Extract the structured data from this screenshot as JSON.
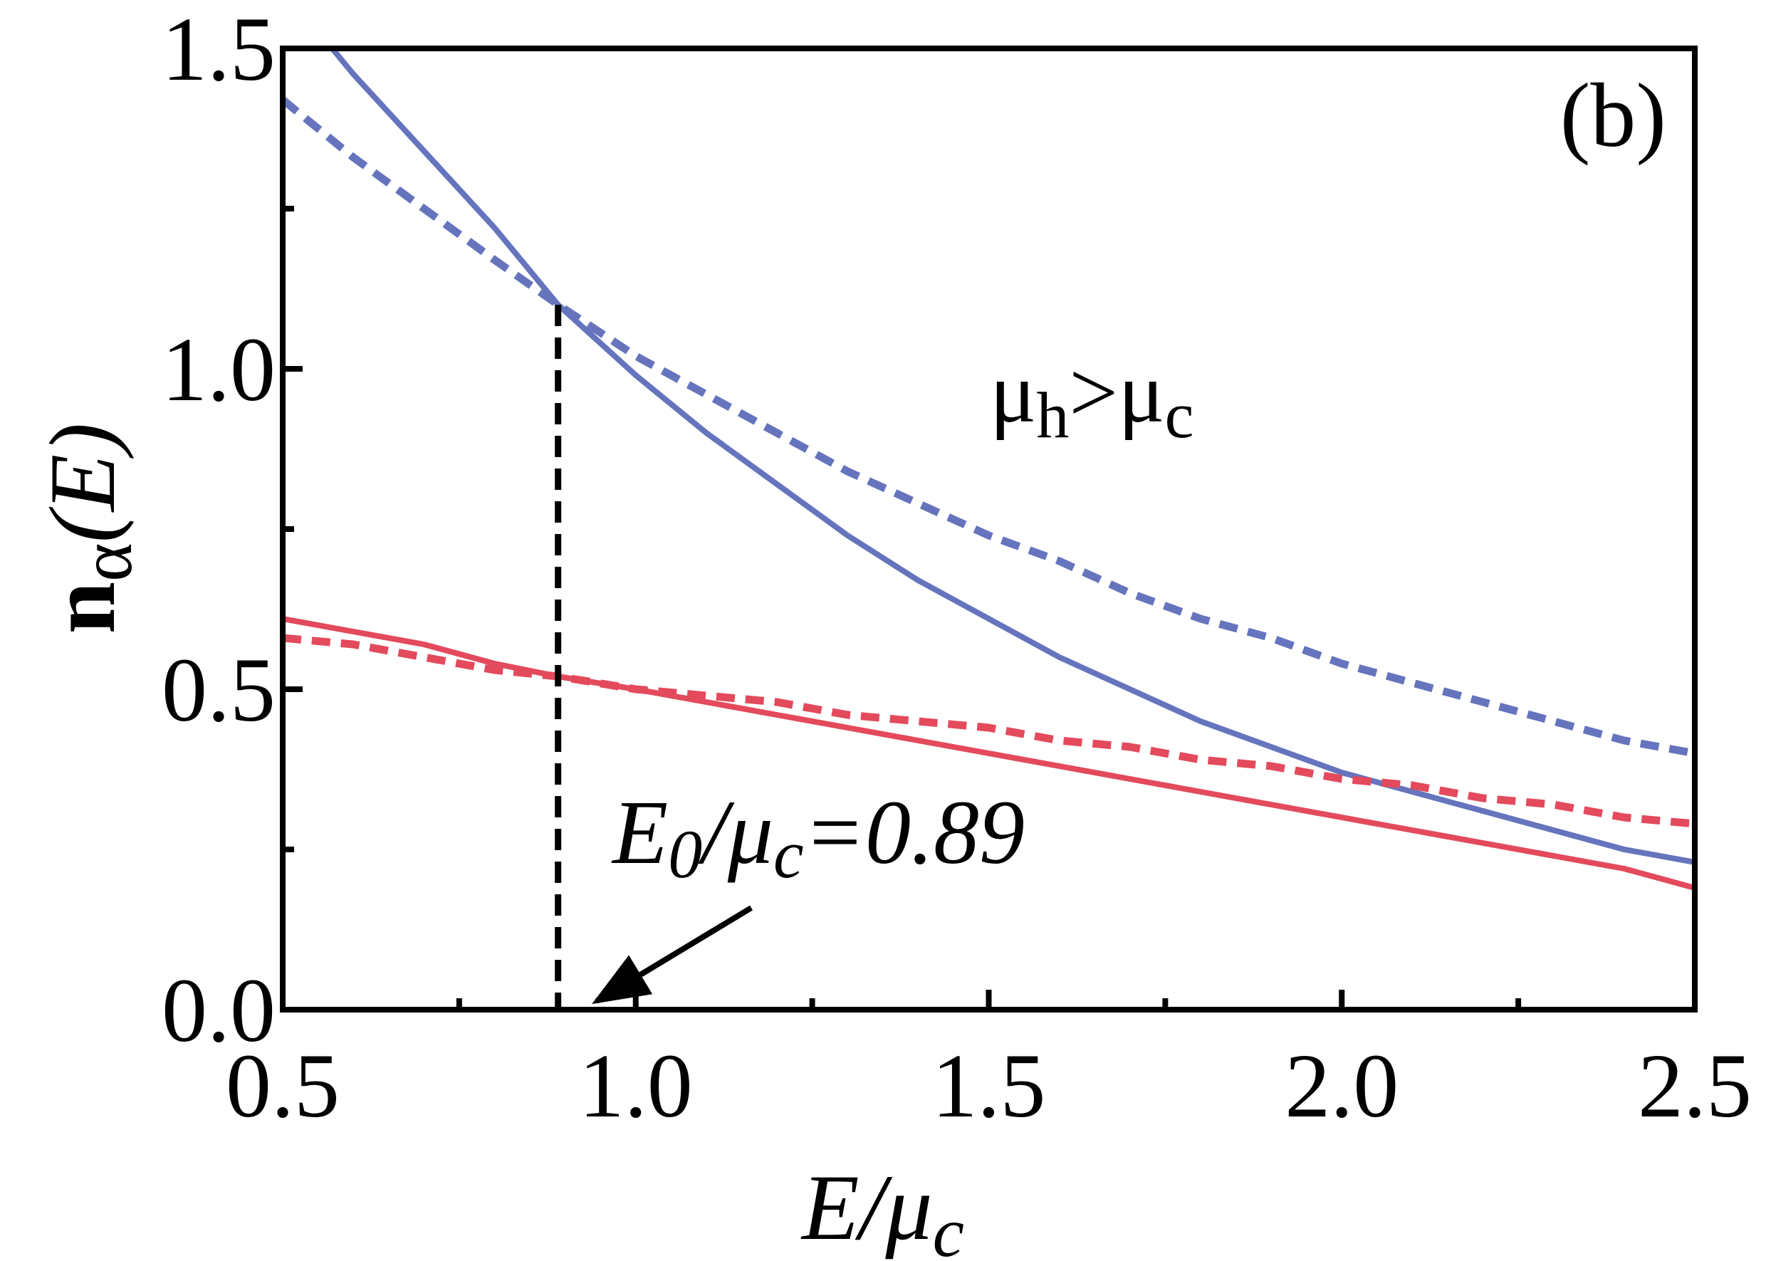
{
  "chart_data": {
    "type": "line",
    "panel_label": "(b)",
    "xlabel": {
      "main": "E/μ",
      "sub": "c"
    },
    "ylabel": {
      "main": "n",
      "sub": "α",
      "tail": "(E)"
    },
    "xlim": [
      0.5,
      2.5
    ],
    "ylim": [
      0.0,
      1.5
    ],
    "x_ticks": [
      0.5,
      1.0,
      1.5,
      2.0,
      2.5
    ],
    "x_tick_labels": [
      "0.5",
      "1.0",
      "1.5",
      "2.0",
      "2.5"
    ],
    "x_minor_ticks": [
      0.75,
      1.25,
      1.75,
      2.25
    ],
    "y_ticks": [
      0.0,
      0.5,
      1.0,
      1.5
    ],
    "y_tick_labels": [
      "0.0",
      "0.5",
      "1.0",
      "1.5"
    ],
    "y_minor_ticks": [
      0.25,
      0.75,
      1.25
    ],
    "grid": false,
    "colors": {
      "blue": "#6574bd",
      "red": "#e34a5c",
      "marker": "#000000"
    },
    "series": [
      {
        "style": "solid",
        "color": "blue",
        "x": [
          0.57,
          0.6,
          0.7,
          0.8,
          0.89,
          1.0,
          1.1,
          1.2,
          1.3,
          1.4,
          1.5,
          1.6,
          1.7,
          1.8,
          1.9,
          2.0,
          2.1,
          2.2,
          2.3,
          2.4,
          2.5
        ],
        "y": [
          1.5,
          1.46,
          1.34,
          1.22,
          1.1,
          0.99,
          0.9,
          0.82,
          0.74,
          0.67,
          0.61,
          0.55,
          0.5,
          0.45,
          0.41,
          0.37,
          0.34,
          0.31,
          0.28,
          0.25,
          0.23
        ]
      },
      {
        "style": "dashed",
        "color": "blue",
        "x": [
          0.5,
          0.6,
          0.7,
          0.8,
          0.89,
          1.0,
          1.1,
          1.2,
          1.3,
          1.4,
          1.5,
          1.6,
          1.7,
          1.8,
          1.9,
          2.0,
          2.1,
          2.2,
          2.3,
          2.4,
          2.5
        ],
        "y": [
          1.42,
          1.33,
          1.25,
          1.17,
          1.1,
          1.02,
          0.96,
          0.9,
          0.84,
          0.79,
          0.74,
          0.7,
          0.65,
          0.61,
          0.58,
          0.54,
          0.51,
          0.48,
          0.45,
          0.42,
          0.4
        ]
      },
      {
        "style": "solid",
        "color": "red",
        "x": [
          0.5,
          0.6,
          0.7,
          0.8,
          0.89,
          1.0,
          1.1,
          1.2,
          1.3,
          1.4,
          1.5,
          1.6,
          1.7,
          1.8,
          1.9,
          2.0,
          2.1,
          2.2,
          2.3,
          2.4,
          2.5
        ],
        "y": [
          0.61,
          0.59,
          0.57,
          0.54,
          0.52,
          0.5,
          0.48,
          0.46,
          0.44,
          0.42,
          0.4,
          0.38,
          0.36,
          0.34,
          0.32,
          0.3,
          0.28,
          0.26,
          0.24,
          0.22,
          0.19
        ]
      },
      {
        "style": "dashed",
        "color": "red",
        "x": [
          0.5,
          0.6,
          0.7,
          0.8,
          0.89,
          1.0,
          1.1,
          1.2,
          1.3,
          1.4,
          1.5,
          1.6,
          1.7,
          1.8,
          1.9,
          2.0,
          2.1,
          2.2,
          2.3,
          2.4,
          2.5
        ],
        "y": [
          0.58,
          0.57,
          0.55,
          0.53,
          0.52,
          0.5,
          0.49,
          0.48,
          0.46,
          0.45,
          0.44,
          0.42,
          0.41,
          0.39,
          0.38,
          0.36,
          0.35,
          0.33,
          0.32,
          0.3,
          0.29
        ]
      }
    ],
    "vertical_marker": {
      "x": 0.89,
      "y_top": 1.1,
      "style": "dashed",
      "color": "marker"
    },
    "annotations": {
      "condition": {
        "mu": "μ",
        "h": "h",
        "gt": ">",
        "mu2": "μ",
        "c": "c"
      },
      "e0": {
        "E": "E",
        "zero": "0",
        "slash_mu": "/μ",
        "c": "c",
        "value": "=0.89"
      }
    }
  }
}
